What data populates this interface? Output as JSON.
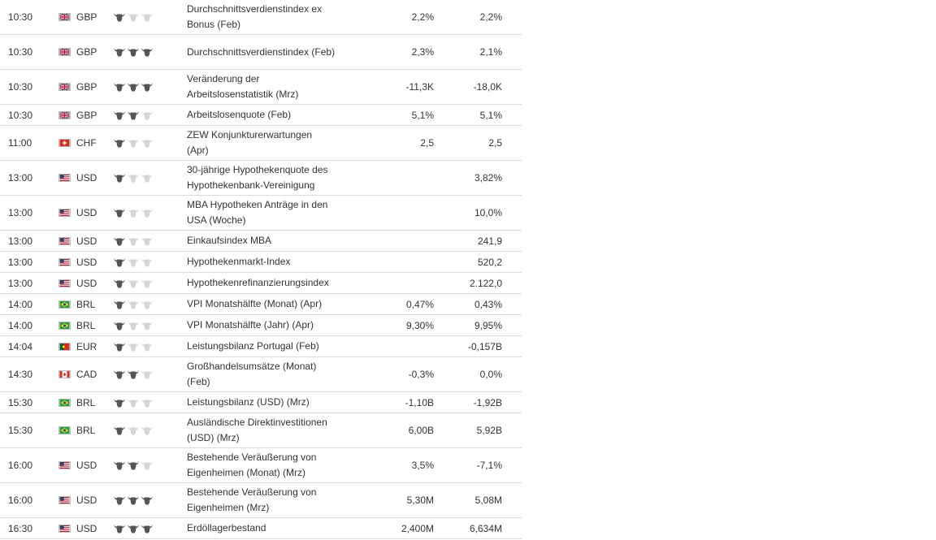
{
  "icons": {
    "bull_filled": "bull-icon-filled",
    "bull_empty": "bull-icon-empty"
  },
  "rows": [
    {
      "time": "10:30",
      "flag": "gb",
      "currency": "GBP",
      "importance": 1,
      "event": "Durchschnittsverdienstindex ex Bonus (Feb)",
      "forecast": "2,2%",
      "previous": "2,2%",
      "size": "tall"
    },
    {
      "time": "10:30",
      "flag": "gb",
      "currency": "GBP",
      "importance": 3,
      "event": "Durchschnittsverdienstindex (Feb)",
      "forecast": "2,3%",
      "previous": "2,1%",
      "size": "tall"
    },
    {
      "time": "10:30",
      "flag": "gb",
      "currency": "GBP",
      "importance": 3,
      "event": "Veränderung der Arbeitslosenstatistik (Mrz)",
      "forecast": "-11,3K",
      "previous": "-18,0K",
      "size": "tall"
    },
    {
      "time": "10:30",
      "flag": "gb",
      "currency": "GBP",
      "importance": 2,
      "event": "Arbeitslosenquote (Feb)",
      "forecast": "5,1%",
      "previous": "5,1%",
      "size": "short"
    },
    {
      "time": "11:00",
      "flag": "ch",
      "currency": "CHF",
      "importance": 1,
      "event": "ZEW Konjunkturerwartungen (Apr)",
      "forecast": "2,5",
      "previous": "2,5",
      "size": "tall"
    },
    {
      "time": "13:00",
      "flag": "us",
      "currency": "USD",
      "importance": 1,
      "event": "30-jährige Hypothekenquote des Hypothekenbank-Vereinigung",
      "forecast": "",
      "previous": "3,82%",
      "size": "tall"
    },
    {
      "time": "13:00",
      "flag": "us",
      "currency": "USD",
      "importance": 1,
      "event": "MBA Hypotheken Anträge in den USA (Woche)",
      "forecast": "",
      "previous": "10,0%",
      "size": "tall"
    },
    {
      "time": "13:00",
      "flag": "us",
      "currency": "USD",
      "importance": 1,
      "event": "Einkaufsindex MBA",
      "forecast": "",
      "previous": "241,9",
      "size": "short"
    },
    {
      "time": "13:00",
      "flag": "us",
      "currency": "USD",
      "importance": 1,
      "event": "Hypothekenmarkt-Index",
      "forecast": "",
      "previous": "520,2",
      "size": "short"
    },
    {
      "time": "13:00",
      "flag": "us",
      "currency": "USD",
      "importance": 1,
      "event": "Hypothekenrefinanzierungsindex",
      "forecast": "",
      "previous": "2.122,0",
      "size": "short"
    },
    {
      "time": "14:00",
      "flag": "br",
      "currency": "BRL",
      "importance": 1,
      "event": "VPI Monatshälfte (Monat) (Apr)",
      "forecast": "0,47%",
      "previous": "0,43%",
      "size": "short"
    },
    {
      "time": "14:00",
      "flag": "br",
      "currency": "BRL",
      "importance": 1,
      "event": "VPI Monatshälfte (Jahr) (Apr)",
      "forecast": "9,30%",
      "previous": "9,95%",
      "size": "short"
    },
    {
      "time": "14:04",
      "flag": "pt",
      "currency": "EUR",
      "importance": 1,
      "event": "Leistungsbilanz Portugal (Feb)",
      "forecast": "",
      "previous": "-0,157B",
      "size": "short"
    },
    {
      "time": "14:30",
      "flag": "ca",
      "currency": "CAD",
      "importance": 2,
      "event": "Großhandelsumsätze (Monat) (Feb)",
      "forecast": "-0,3%",
      "previous": "0,0%",
      "size": "tall"
    },
    {
      "time": "15:30",
      "flag": "br",
      "currency": "BRL",
      "importance": 1,
      "event": "Leistungsbilanz (USD) (Mrz)",
      "forecast": "-1,10B",
      "previous": "-1,92B",
      "size": "short"
    },
    {
      "time": "15:30",
      "flag": "br",
      "currency": "BRL",
      "importance": 1,
      "event": "Ausländische Direktinvestitionen (USD) (Mrz)",
      "forecast": "6,00B",
      "previous": "5,92B",
      "size": "tall"
    },
    {
      "time": "16:00",
      "flag": "us",
      "currency": "USD",
      "importance": 2,
      "event": "Bestehende Veräußerung von Eigenheimen (Monat) (Mrz)",
      "forecast": "3,5%",
      "previous": "-7,1%",
      "size": "tall"
    },
    {
      "time": "16:00",
      "flag": "us",
      "currency": "USD",
      "importance": 3,
      "event": "Bestehende Veräußerung von Eigenheimen (Mrz)",
      "forecast": "5,30M",
      "previous": "5,08M",
      "size": "tall"
    },
    {
      "time": "16:30",
      "flag": "us",
      "currency": "USD",
      "importance": 3,
      "event": "Erdöllagerbestand",
      "forecast": "2,400M",
      "previous": "6,634M",
      "size": "short"
    }
  ]
}
